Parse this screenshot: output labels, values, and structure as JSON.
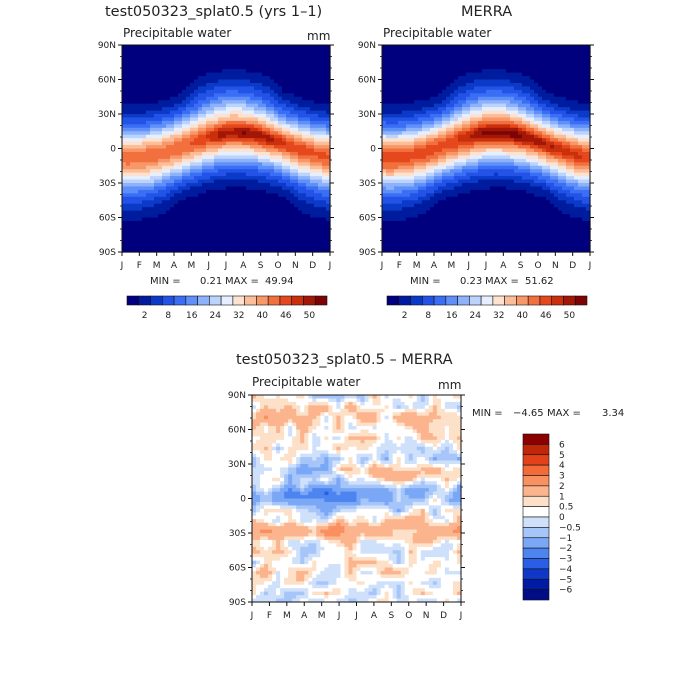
{
  "chart_data": [
    {
      "type": "heatmap",
      "id": "model",
      "title": "test050323_splat0.5 (yrs 1–1)",
      "subtitle": "Precipitable water",
      "units": "mm",
      "x_ticks": [
        "J",
        "F",
        "M",
        "A",
        "M",
        "J",
        "J",
        "A",
        "S",
        "O",
        "N",
        "D",
        "J"
      ],
      "y_ticks": [
        "90N",
        "60N",
        "30N",
        "0",
        "30S",
        "60S",
        "90S"
      ],
      "y_range": [
        -90,
        90
      ],
      "stats": {
        "min_label": "MIN =",
        "min": "0.21",
        "max_label": "MAX =",
        "max": "49.94"
      },
      "colorbar": {
        "orientation": "horizontal",
        "labels": [
          "2",
          "8",
          "16",
          "24",
          "32",
          "40",
          "46",
          "50"
        ],
        "colors": [
          "#00007f",
          "#001c9e",
          "#0b3ac8",
          "#2353e6",
          "#3a6ef5",
          "#5f8ff8",
          "#8db2fb",
          "#bcd3fc",
          "#e6efff",
          "#fde2cf",
          "#fbbd9a",
          "#f89868",
          "#f2703e",
          "#e5481c",
          "#c9300b",
          "#a31708",
          "#7c0404"
        ]
      },
      "field": {
        "peak": 49.94,
        "peak_lat_range": [
          -8,
          12
        ],
        "equator_value": 44,
        "pole_value": 0.21,
        "peak_month": "Aug"
      }
    },
    {
      "type": "heatmap",
      "id": "obs",
      "title": "MERRA",
      "subtitle": "Precipitable water",
      "units": "",
      "x_ticks": [
        "J",
        "F",
        "M",
        "A",
        "M",
        "J",
        "J",
        "A",
        "S",
        "O",
        "N",
        "D",
        "J"
      ],
      "y_ticks": [
        "90N",
        "60N",
        "30N",
        "0",
        "30S",
        "60S",
        "90S"
      ],
      "y_range": [
        -90,
        90
      ],
      "stats": {
        "min_label": "MIN =",
        "min": "0.23",
        "max_label": "MAX =",
        "max": "51.62"
      },
      "colorbar": {
        "orientation": "horizontal",
        "labels": [
          "2",
          "8",
          "16",
          "24",
          "32",
          "40",
          "46",
          "50"
        ],
        "colors": [
          "#00007f",
          "#001c9e",
          "#0b3ac8",
          "#2353e6",
          "#3a6ef5",
          "#5f8ff8",
          "#8db2fb",
          "#bcd3fc",
          "#e6efff",
          "#fde2cf",
          "#fbbd9a",
          "#f89868",
          "#f2703e",
          "#e5481c",
          "#c9300b",
          "#a31708",
          "#7c0404"
        ]
      },
      "field": {
        "peak": 51.62,
        "peak_lat_range": [
          -8,
          12
        ],
        "equator_value": 46,
        "pole_value": 0.23,
        "peak_month": "Aug"
      }
    },
    {
      "type": "heatmap",
      "id": "diff",
      "title": "test050323_splat0.5 – MERRA",
      "subtitle": "Precipitable water",
      "units": "mm",
      "x_ticks": [
        "J",
        "F",
        "M",
        "A",
        "M",
        "J",
        "J",
        "A",
        "S",
        "O",
        "N",
        "D",
        "J"
      ],
      "y_ticks": [
        "90N",
        "60N",
        "30N",
        "0",
        "30S",
        "60S",
        "90S"
      ],
      "y_range": [
        -90,
        90
      ],
      "stats": {
        "min_label": "MIN =",
        "min": "−4.65",
        "max_label": "MAX =",
        "max": "3.34"
      },
      "colorbar": {
        "orientation": "vertical",
        "labels": [
          "6",
          "5",
          "4",
          "3",
          "2",
          "1",
          "0.5",
          "0",
          "−0.5",
          "−1",
          "−2",
          "−3",
          "−4",
          "−5",
          "−6"
        ],
        "colors": [
          "#8b0000",
          "#c0270a",
          "#e34218",
          "#f46a38",
          "#f9905f",
          "#fbb48d",
          "#fde0c8",
          "#ffffff",
          "#cfe0fb",
          "#a6c5f9",
          "#7aa7f6",
          "#4d84f0",
          "#2a5ee6",
          "#1038c8",
          "#001ca4",
          "#000d84"
        ]
      },
      "field": {
        "min": -4.65,
        "max": 3.34,
        "equator_band": "negative",
        "subtropics": "positive"
      }
    }
  ]
}
